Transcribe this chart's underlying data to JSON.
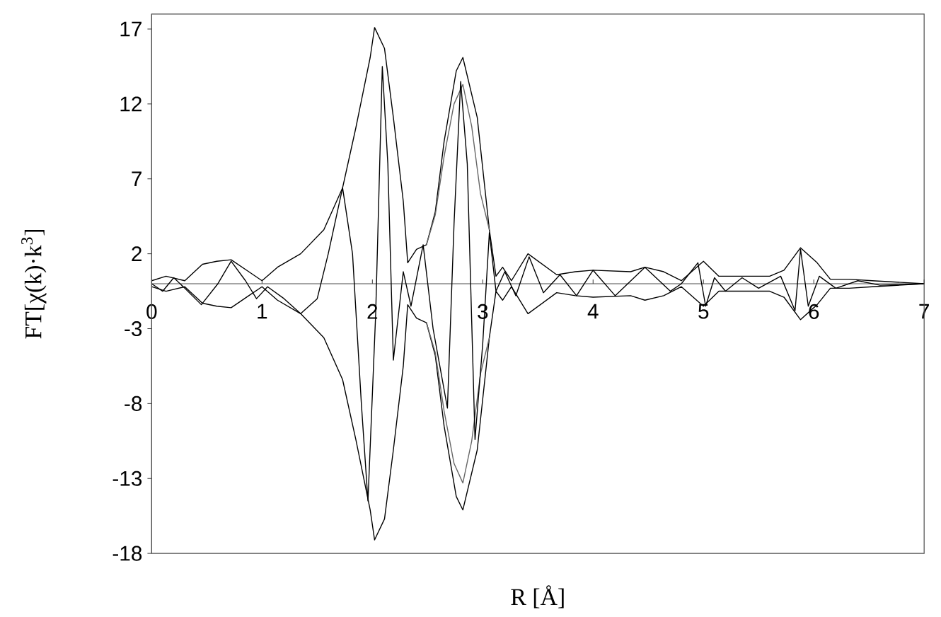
{
  "chart_data": {
    "type": "line",
    "xlabel": "R [Å]",
    "ylabel": "FT[χ(k)·k$^{3}$]",
    "xlim": [
      0,
      7
    ],
    "ylim": [
      -18,
      18
    ],
    "xticks": [
      0,
      1,
      2,
      3,
      4,
      5,
      6,
      7
    ],
    "yticks": [
      -18,
      -13,
      -8,
      -3,
      2,
      7,
      12,
      17
    ],
    "marker": "none",
    "series": [
      {
        "color": "#000000",
        "x": [
          0,
          0.13,
          0.3,
          0.46,
          0.59,
          0.72,
          0.88,
          1.0,
          1.14,
          1.35,
          1.56,
          1.73,
          1.85,
          1.98,
          2.02,
          2.11,
          2.19,
          2.28,
          2.32,
          2.4,
          2.49,
          2.57,
          2.65,
          2.76,
          2.82,
          2.95,
          3.06,
          3.12,
          3.18,
          3.26,
          3.41,
          3.67,
          3.84,
          4.0,
          4.34,
          4.47,
          4.64,
          4.8,
          5.0,
          5.14,
          5.31,
          5.6,
          5.73,
          5.88,
          6.03,
          6.15,
          6.32,
          6.53,
          7.0
        ],
        "values": [
          0.2,
          0.5,
          0.2,
          1.3,
          1.5,
          1.6,
          0.8,
          0.2,
          1.1,
          2.0,
          3.6,
          6.4,
          10.4,
          15.1,
          17.1,
          15.7,
          11.1,
          5.5,
          1.4,
          2.3,
          2.6,
          4.8,
          9.5,
          14.2,
          15.1,
          11.1,
          3.6,
          0.5,
          1.1,
          0.2,
          2.0,
          0.6,
          0.8,
          0.9,
          0.8,
          1.1,
          0.8,
          0.2,
          1.5,
          0.5,
          0.5,
          0.5,
          0.9,
          2.4,
          1.4,
          0.3,
          0.3,
          0.2,
          0
        ]
      },
      {
        "color": "#000000",
        "x": [
          0,
          0.13,
          0.3,
          0.46,
          0.59,
          0.72,
          0.88,
          1.0,
          1.14,
          1.35,
          1.56,
          1.73,
          1.85,
          1.98,
          2.02,
          2.11,
          2.19,
          2.28,
          2.32,
          2.4,
          2.49,
          2.57,
          2.65,
          2.76,
          2.82,
          2.95,
          3.06,
          3.12,
          3.18,
          3.26,
          3.41,
          3.67,
          3.84,
          4.0,
          4.34,
          4.47,
          4.64,
          4.8,
          5.0,
          5.14,
          5.31,
          5.6,
          5.73,
          5.88,
          6.03,
          6.15,
          6.32,
          6.53,
          7.0
        ],
        "values": [
          -0.2,
          -0.5,
          -0.2,
          -1.3,
          -1.5,
          -1.6,
          -0.8,
          -0.2,
          -1.1,
          -2.0,
          -3.6,
          -6.4,
          -10.4,
          -15.1,
          -17.1,
          -15.7,
          -11.1,
          -5.5,
          -1.4,
          -2.3,
          -2.6,
          -4.8,
          -9.5,
          -14.2,
          -15.1,
          -11.1,
          -3.6,
          -0.5,
          -1.1,
          -0.2,
          -2.0,
          -0.6,
          -0.8,
          -0.9,
          -0.8,
          -1.1,
          -0.8,
          -0.2,
          -1.5,
          -0.5,
          -0.5,
          -0.5,
          -0.9,
          -2.4,
          -1.4,
          -0.3,
          -0.3,
          -0.2,
          0
        ]
      },
      {
        "color": "#666666",
        "x": [
          2.49,
          2.57,
          2.65,
          2.74,
          2.82,
          2.9,
          2.98,
          3.06
        ],
        "values": [
          2.6,
          4.6,
          8.5,
          12.0,
          13.3,
          10.5,
          6.0,
          3.6
        ]
      },
      {
        "color": "#666666",
        "x": [
          2.49,
          2.57,
          2.65,
          2.74,
          2.82,
          2.9,
          2.98,
          3.06
        ],
        "values": [
          -2.6,
          -4.6,
          -8.5,
          -12.0,
          -13.3,
          -10.5,
          -6.0,
          -3.6
        ]
      },
      {
        "color": "#000000",
        "x": [
          0,
          0.1,
          0.2,
          0.3,
          0.45,
          0.6,
          0.72,
          0.85,
          0.95,
          1.05,
          1.2,
          1.35,
          1.5,
          1.6,
          1.73,
          1.82,
          1.9,
          1.96,
          2.03,
          2.09,
          2.14,
          2.19,
          2.28,
          2.35,
          2.46,
          2.55,
          2.68,
          2.74,
          2.8,
          2.86,
          2.93,
          3.0,
          3.06,
          3.12,
          3.2,
          3.3,
          3.42,
          3.55,
          3.7,
          3.85,
          4.0,
          4.2,
          4.47,
          4.7,
          4.8,
          4.95,
          5.02,
          5.1,
          5.2,
          5.35,
          5.5,
          5.7,
          5.83,
          5.88,
          5.95,
          6.05,
          6.2,
          6.4,
          6.6,
          7.0
        ],
        "values": [
          0,
          -0.5,
          0.4,
          -0.3,
          -1.4,
          0,
          1.5,
          0.2,
          -1.0,
          -0.2,
          -1.0,
          -2.0,
          -1.0,
          2.0,
          6.4,
          2.0,
          -8.0,
          -14.5,
          -2.0,
          14.5,
          8.0,
          -5.1,
          0.8,
          -1.5,
          2.6,
          -3.0,
          -8.3,
          4.0,
          13.5,
          8.0,
          -10.4,
          -4.0,
          3.4,
          -0.5,
          0.8,
          -0.8,
          1.8,
          -0.6,
          0.6,
          -0.8,
          0.9,
          -0.8,
          1.1,
          -0.5,
          0,
          1.4,
          -1.5,
          0.4,
          -0.5,
          0.4,
          -0.3,
          0.5,
          -1.8,
          2.3,
          -1.5,
          0.5,
          -0.3,
          0.2,
          -0.1,
          0
        ]
      }
    ]
  }
}
